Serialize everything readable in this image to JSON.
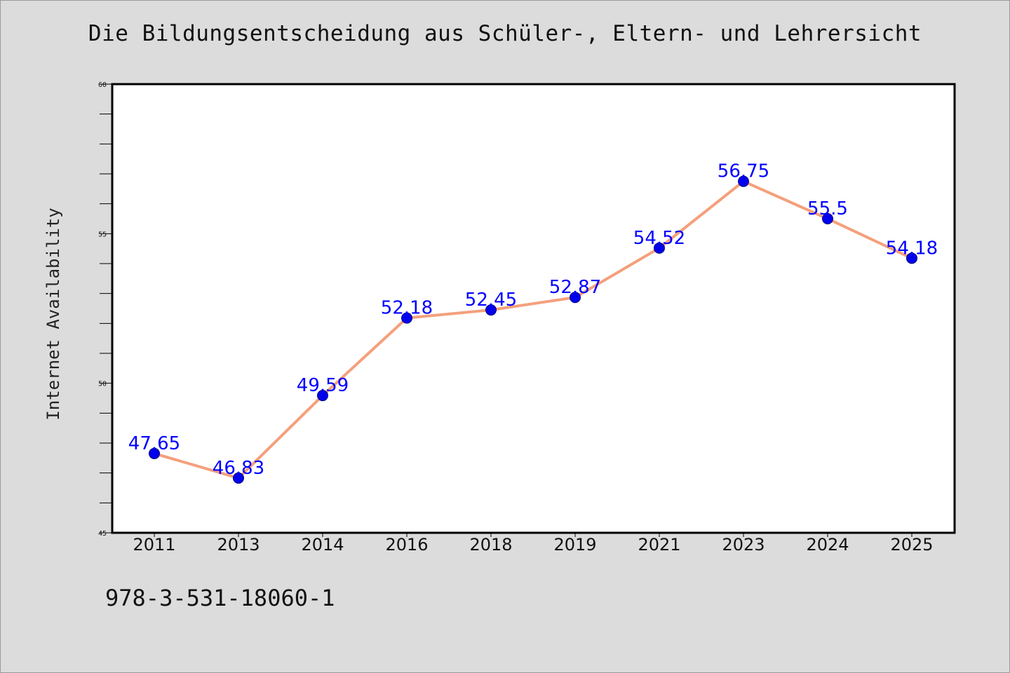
{
  "chart_data": {
    "type": "line",
    "title": "Die Bildungsentscheidung aus Schüler-, Eltern- und Lehrersicht",
    "xlabel": "",
    "ylabel": "Internet Availability",
    "categories": [
      "2011",
      "2013",
      "2014",
      "2016",
      "2018",
      "2019",
      "2021",
      "2023",
      "2024",
      "2025"
    ],
    "series": [
      {
        "values": [
          47.65,
          46.83,
          49.59,
          52.18,
          52.45,
          52.87,
          54.52,
          56.75,
          55.5,
          54.18
        ],
        "data_labels": [
          "47.65",
          "46.83",
          "49.59",
          "52.18",
          "52.45",
          "52.87",
          "54.52",
          "56.75",
          "55.5",
          "54.18"
        ]
      }
    ],
    "ylim": [
      45,
      60
    ],
    "yticks": [
      "45",
      "50",
      "55",
      "60"
    ],
    "grid": false,
    "colors": {
      "line": "#f4a07c",
      "marker": "#0000ee",
      "label": "#0000ff",
      "plot_background": "#ffffff",
      "page_background": "#dcdcdc"
    }
  },
  "footer_text": "978-3-531-18060-1"
}
